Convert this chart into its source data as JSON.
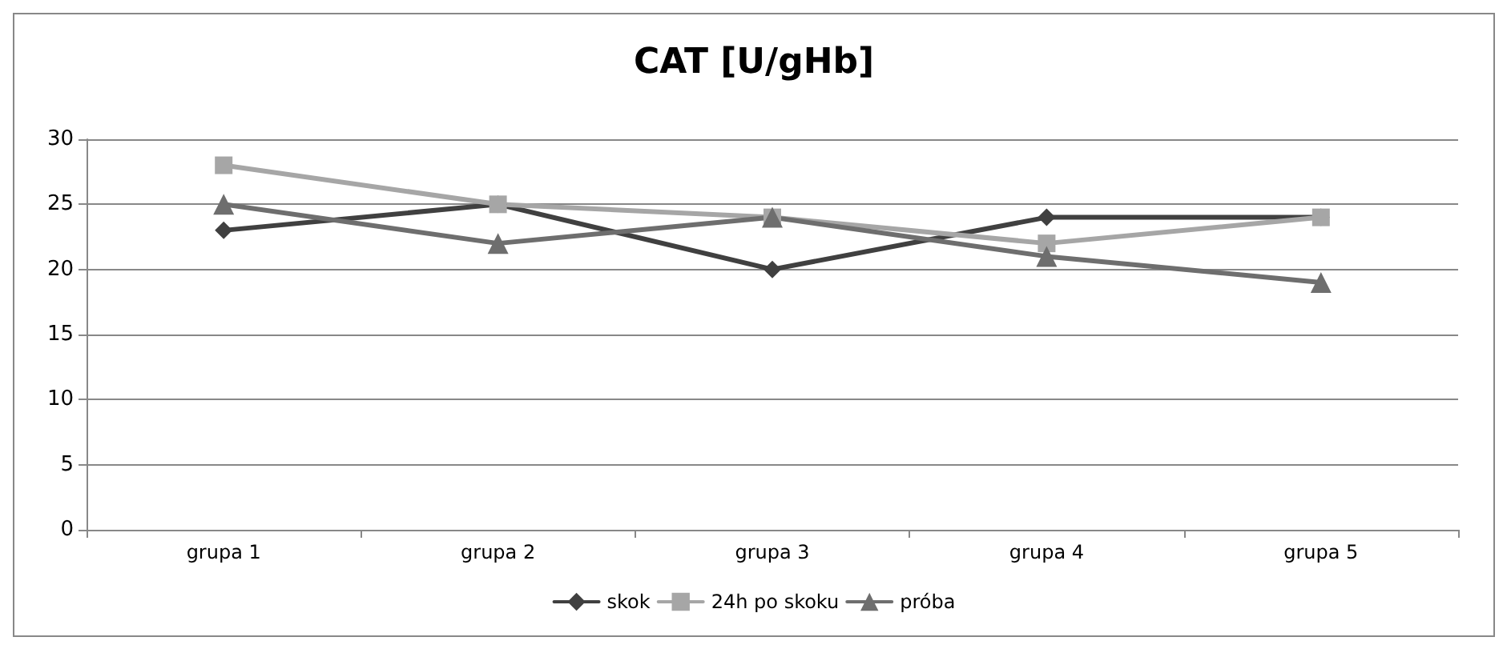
{
  "chart_data": {
    "type": "line",
    "title": "CAT [U/gHb]",
    "categories": [
      "grupa 1",
      "grupa 2",
      "grupa 3",
      "grupa 4",
      "grupa 5"
    ],
    "series": [
      {
        "name": "skok",
        "color": "#404040",
        "marker": "diamond",
        "values": [
          23,
          25,
          20,
          24,
          24
        ]
      },
      {
        "name": "24h po skoku",
        "color": "#a6a6a6",
        "marker": "square",
        "values": [
          28,
          25,
          24,
          22,
          24
        ]
      },
      {
        "name": "próba",
        "color": "#6e6e6e",
        "marker": "triangle",
        "values": [
          25,
          22,
          24,
          21,
          19
        ]
      }
    ],
    "ylim": [
      0,
      30
    ],
    "yticks": [
      0,
      5,
      10,
      15,
      20,
      25,
      30
    ],
    "grid": "y",
    "legend": "bottom",
    "line_style": "solid"
  }
}
